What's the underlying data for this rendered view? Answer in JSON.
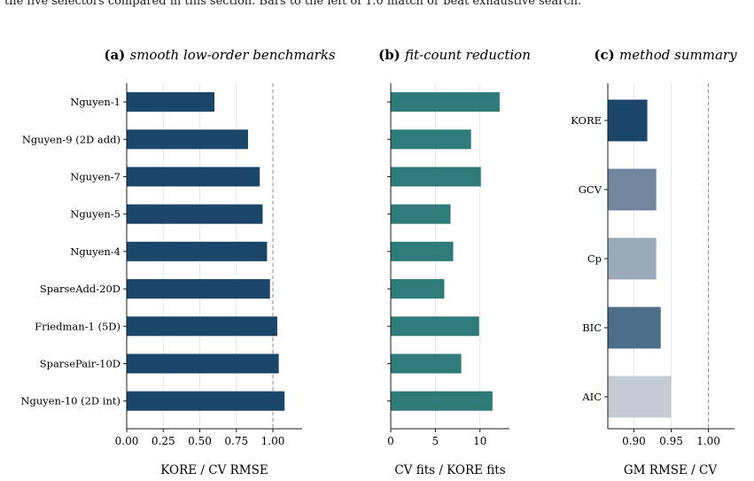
{
  "caption_partial": "the five selectors compared in this section. Bars to the left of 1.0 match or beat exhaustive search.",
  "colors": {
    "kore_navy": "#1b4669",
    "teal": "#2f7b79",
    "gcv": "#7286a0",
    "cp": "#9aaab9",
    "bic": "#4d6e8a",
    "aic": "#c3cbd3",
    "axis": "#1a1a1a",
    "reference_line": "#8c8c8c"
  },
  "chart_data": [
    {
      "type": "bar",
      "orientation": "horizontal",
      "panel_label": "(a)",
      "title": "smooth low-order benchmarks",
      "xlabel": "KORE / CV RMSE",
      "ylabel": "",
      "xlim": [
        0.0,
        1.2
      ],
      "xticks": [
        "0.00",
        "0.25",
        "0.50",
        "0.75",
        "1.00"
      ],
      "xtick_values": [
        0.0,
        0.25,
        0.5,
        0.75,
        1.0
      ],
      "reference_line": 1.0,
      "grid": "vertical",
      "categories": [
        "Nguyen-1",
        "Nguyen-9 (2D add)",
        "Nguyen-7",
        "Nguyen-5",
        "Nguyen-4",
        "SparseAdd-20D",
        "Friedman-1 (5D)",
        "SparsePair-10D",
        "Nguyen-10 (2D int)"
      ],
      "values": [
        0.6,
        0.83,
        0.91,
        0.93,
        0.96,
        0.98,
        1.03,
        1.04,
        1.08
      ]
    },
    {
      "type": "bar",
      "orientation": "horizontal",
      "panel_label": "(b)",
      "title": "fit-count reduction",
      "xlabel": "CV fits / KORE fits",
      "ylabel": "",
      "xlim": [
        0,
        13.3
      ],
      "xticks": [
        "0",
        "5",
        "10"
      ],
      "xtick_values": [
        0,
        5,
        10
      ],
      "grid": "vertical",
      "categories": [
        "Nguyen-1",
        "Nguyen-9 (2D add)",
        "Nguyen-7",
        "Nguyen-5",
        "Nguyen-4",
        "SparseAdd-20D",
        "Friedman-1 (5D)",
        "SparsePair-10D",
        "Nguyen-10 (2D int)"
      ],
      "values": [
        12.2,
        9.0,
        10.1,
        6.7,
        7.0,
        6.0,
        9.9,
        7.9,
        11.4
      ]
    },
    {
      "type": "bar",
      "orientation": "horizontal",
      "panel_label": "(c)",
      "title": "method summary",
      "xlabel": "GM RMSE / CV",
      "ylabel": "",
      "xlim": [
        0.865,
        1.035
      ],
      "xticks": [
        "0.90",
        "0.95",
        "1.00"
      ],
      "xtick_values": [
        0.9,
        0.95,
        1.0
      ],
      "reference_line": 1.0,
      "grid": "vertical",
      "categories": [
        "KORE",
        "GCV",
        "Cp",
        "BIC",
        "AIC"
      ],
      "values": [
        0.918,
        0.93,
        0.93,
        0.936,
        0.95
      ]
    }
  ]
}
